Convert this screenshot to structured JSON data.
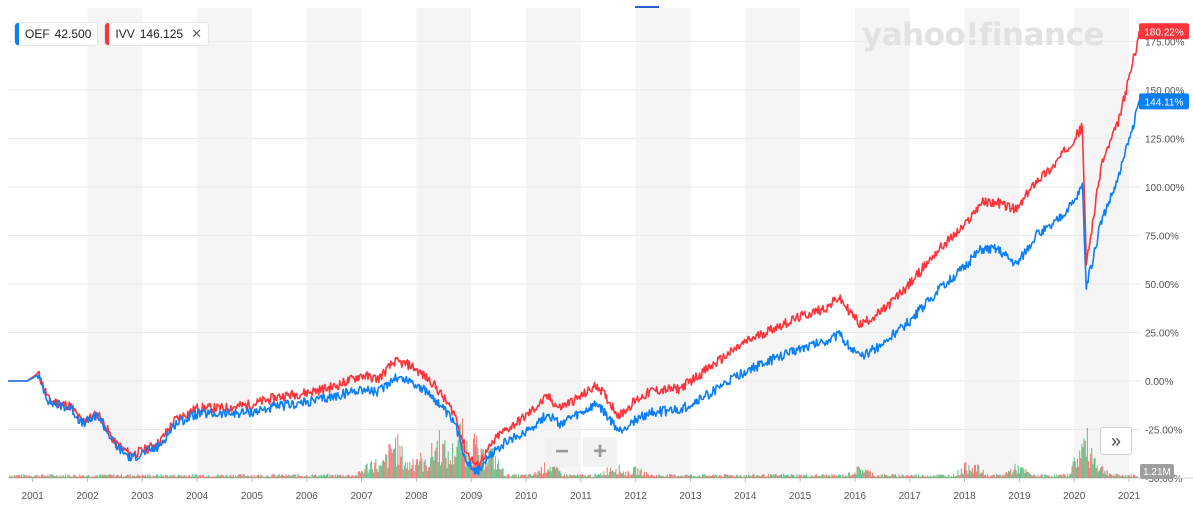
{
  "watermark": "yahoo!finance",
  "legend": [
    {
      "symbol": "OEF",
      "value": "42.500",
      "color": "#0b7ff5",
      "closable": false
    },
    {
      "symbol": "IVV",
      "value": "146.125",
      "color": "#ff333a",
      "closable": true
    }
  ],
  "close_glyph": "✕",
  "zoom": {
    "minus": "−",
    "plus": "+"
  },
  "expand_glyph": "»",
  "colors": {
    "oef": "#0b7ff5",
    "ivv": "#ff333a",
    "volume_up": "#3ab067",
    "volume_down": "#ef5350",
    "band": "#f5f5f5",
    "grid": "#eaeaea"
  },
  "chart_data": {
    "type": "line",
    "title": "",
    "xlabel": "",
    "ylabel": "",
    "ylim": [
      -50,
      185
    ],
    "y_unit": "%",
    "y_ticks": [
      "-50.00%",
      "-25.00%",
      "0.00%",
      "25.00%",
      "50.00%",
      "75.00%",
      "100.00%",
      "125.00%",
      "150.00%",
      "175.00%"
    ],
    "y_tick_values": [
      -50,
      -25,
      0,
      25,
      50,
      75,
      100,
      125,
      150,
      175
    ],
    "x_ticks": [
      "2001",
      "2002",
      "2003",
      "2004",
      "2005",
      "2006",
      "2007",
      "2008",
      "2009",
      "2010",
      "2011",
      "2012",
      "2013",
      "2014",
      "2015",
      "2016",
      "2017",
      "2018",
      "2019",
      "2020",
      "2021"
    ],
    "xlim": [
      2000.55,
      2021.2
    ],
    "series": [
      {
        "name": "IVV",
        "color": "#ff333a",
        "last_label": "180.22%",
        "x": [
          2000.55,
          2000.9,
          2001.1,
          2001.3,
          2001.7,
          2001.9,
          2002.2,
          2002.5,
          2002.8,
          2003.0,
          2003.3,
          2003.6,
          2004.0,
          2004.5,
          2005.0,
          2005.5,
          2006.0,
          2006.5,
          2007.0,
          2007.3,
          2007.6,
          2007.9,
          2008.3,
          2008.7,
          2008.9,
          2009.1,
          2009.5,
          2010.0,
          2010.4,
          2010.6,
          2011.0,
          2011.3,
          2011.7,
          2012.0,
          2012.3,
          2012.8,
          2013.2,
          2013.6,
          2014.0,
          2014.5,
          2015.0,
          2015.5,
          2015.7,
          2016.1,
          2016.5,
          2017.0,
          2017.5,
          2018.0,
          2018.3,
          2018.6,
          2018.95,
          2019.3,
          2019.6,
          2020.0,
          2020.15,
          2020.22,
          2020.5,
          2020.8,
          2021.0,
          2021.2
        ],
        "y": [
          0,
          0,
          4,
          -10,
          -13,
          -21,
          -17,
          -32,
          -38,
          -36,
          -32,
          -20,
          -14,
          -14,
          -12,
          -8,
          -6,
          -3,
          3,
          1,
          10,
          8,
          -1,
          -17,
          -36,
          -44,
          -28,
          -18,
          -8,
          -14,
          -8,
          -2,
          -18,
          -10,
          -5,
          -4,
          4,
          12,
          20,
          27,
          33,
          38,
          43,
          29,
          36,
          50,
          67,
          80,
          92,
          92,
          88,
          103,
          110,
          125,
          131,
          60,
          112,
          133,
          156,
          180.22
        ]
      },
      {
        "name": "OEF",
        "color": "#0b7ff5",
        "last_label": "144.11%",
        "x": [
          2000.55,
          2000.9,
          2001.1,
          2001.3,
          2001.7,
          2001.9,
          2002.2,
          2002.5,
          2002.8,
          2003.0,
          2003.3,
          2003.6,
          2004.0,
          2004.5,
          2005.0,
          2005.5,
          2006.0,
          2006.5,
          2007.0,
          2007.3,
          2007.6,
          2007.9,
          2008.3,
          2008.7,
          2008.9,
          2009.1,
          2009.5,
          2010.0,
          2010.4,
          2010.6,
          2011.0,
          2011.3,
          2011.7,
          2012.0,
          2012.3,
          2012.8,
          2013.2,
          2013.6,
          2014.0,
          2014.5,
          2015.0,
          2015.5,
          2015.7,
          2016.1,
          2016.5,
          2017.0,
          2017.5,
          2018.0,
          2018.3,
          2018.6,
          2018.95,
          2019.3,
          2019.6,
          2020.0,
          2020.15,
          2020.22,
          2020.5,
          2020.8,
          2021.0,
          2021.2
        ],
        "y": [
          0,
          0,
          3,
          -11,
          -14,
          -22,
          -18,
          -33,
          -40,
          -37,
          -34,
          -22,
          -17,
          -17,
          -16,
          -13,
          -11,
          -8,
          -4,
          -6,
          2,
          0,
          -8,
          -22,
          -40,
          -47,
          -34,
          -26,
          -17,
          -22,
          -17,
          -12,
          -26,
          -20,
          -16,
          -15,
          -9,
          -2,
          5,
          11,
          17,
          21,
          24,
          12,
          19,
          31,
          46,
          59,
          68,
          68,
          60,
          75,
          80,
          92,
          101,
          48,
          83,
          104,
          124,
          144.11
        ]
      }
    ],
    "volume_label": "1.21M",
    "volume": {
      "note": "relative daily volume bars along bottom, max at 2020 spike",
      "x": [
        2007.2,
        2007.6,
        2008.0,
        2008.4,
        2008.8,
        2009.0,
        2009.3,
        2010.4,
        2011.6,
        2012.0,
        2016.1,
        2018.1,
        2018.95,
        2020.2,
        2020.4
      ],
      "h": [
        0.25,
        0.55,
        0.35,
        0.6,
        0.7,
        0.6,
        0.45,
        0.2,
        0.18,
        0.12,
        0.14,
        0.22,
        0.16,
        0.58,
        0.2
      ]
    }
  }
}
